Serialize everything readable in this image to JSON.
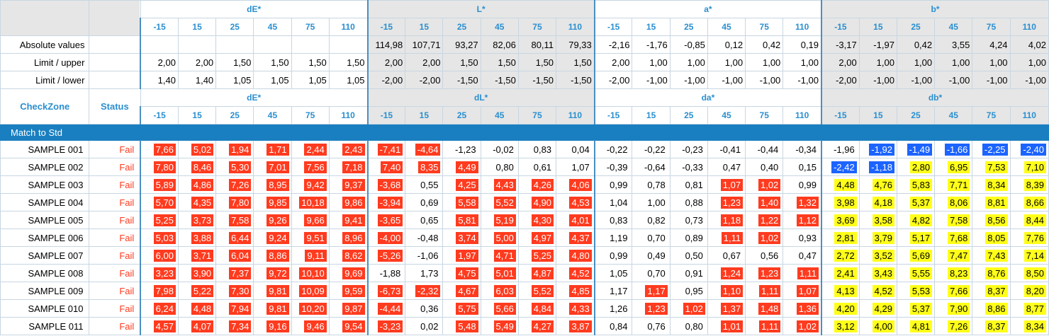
{
  "colors": {
    "accent": "#2a8fd0",
    "band": "#1a7fc0",
    "fail": "#ff3b1f",
    "below": "#1c64ff",
    "warn": "#ffff19"
  },
  "groups_top": [
    "dE*",
    "L*",
    "a*",
    "b*"
  ],
  "groups_diff": [
    "dE*",
    "dL*",
    "da*",
    "db*"
  ],
  "angles": [
    "-15",
    "15",
    "25",
    "45",
    "75",
    "110"
  ],
  "labels": {
    "absolute": "Absolute values",
    "upper": "Limit / upper",
    "lower": "Limit / lower",
    "checkzone": "CheckZone",
    "status": "Status",
    "band": "Match to Std"
  },
  "absolute": [
    "",
    "",
    "",
    "",
    "",
    "",
    "114,98",
    "107,71",
    "93,27",
    "82,06",
    "80,11",
    "79,33",
    "-2,16",
    "-1,76",
    "-0,85",
    "0,12",
    "0,42",
    "0,19",
    "-3,17",
    "-1,97",
    "0,42",
    "3,55",
    "4,24",
    "4,02"
  ],
  "upper": [
    "2,00",
    "2,00",
    "1,50",
    "1,50",
    "1,50",
    "1,50",
    "2,00",
    "2,00",
    "1,50",
    "1,50",
    "1,50",
    "1,50",
    "2,00",
    "1,00",
    "1,00",
    "1,00",
    "1,00",
    "1,00",
    "2,00",
    "1,00",
    "1,00",
    "1,00",
    "1,00",
    "1,00"
  ],
  "lower": [
    "1,40",
    "1,40",
    "1,05",
    "1,05",
    "1,05",
    "1,05",
    "-2,00",
    "-2,00",
    "-1,50",
    "-1,50",
    "-1,50",
    "-1,50",
    "-2,00",
    "-1,00",
    "-1,00",
    "-1,00",
    "-1,00",
    "-1,00",
    "-2,00",
    "-1,00",
    "-1,00",
    "-1,00",
    "-1,00",
    "-1,00"
  ],
  "rows": [
    {
      "name": "SAMPLE 001",
      "status": "Fail",
      "values": [
        "7,66",
        "5,02",
        "1,94",
        "1,71",
        "2,44",
        "2,43",
        "-7,41",
        "-4,64",
        "-1,23",
        "-0,02",
        "0,83",
        "0,04",
        "-0,22",
        "-0,22",
        "-0,23",
        "-0,41",
        "-0,44",
        "-0,34",
        "-1,96",
        "-1,92",
        "-1,49",
        "-1,66",
        "-2,25",
        "-2,40"
      ],
      "flags": [
        "r",
        "r",
        "r",
        "r",
        "r",
        "r",
        "r",
        "r",
        "",
        "",
        "",
        "",
        "",
        "",
        "",
        "",
        "",
        "",
        "",
        "b",
        "b",
        "b",
        "b",
        "b"
      ]
    },
    {
      "name": "SAMPLE 002",
      "status": "Fail",
      "values": [
        "7,80",
        "8,46",
        "5,30",
        "7,01",
        "7,56",
        "7,18",
        "7,40",
        "8,35",
        "4,49",
        "0,80",
        "0,61",
        "1,07",
        "-0,39",
        "-0,64",
        "-0,33",
        "0,47",
        "0,40",
        "0,15",
        "-2,42",
        "-1,18",
        "2,80",
        "6,95",
        "7,53",
        "7,10"
      ],
      "flags": [
        "r",
        "r",
        "r",
        "r",
        "r",
        "r",
        "r",
        "r",
        "r",
        "",
        "",
        "",
        "",
        "",
        "",
        "",
        "",
        "",
        "b",
        "b",
        "y",
        "y",
        "y",
        "y"
      ]
    },
    {
      "name": "SAMPLE 003",
      "status": "Fail",
      "values": [
        "5,89",
        "4,86",
        "7,26",
        "8,95",
        "9,42",
        "9,37",
        "-3,68",
        "0,55",
        "4,25",
        "4,43",
        "4,26",
        "4,06",
        "0,99",
        "0,78",
        "0,81",
        "1,07",
        "1,02",
        "0,99",
        "4,48",
        "4,76",
        "5,83",
        "7,71",
        "8,34",
        "8,39"
      ],
      "flags": [
        "r",
        "r",
        "r",
        "r",
        "r",
        "r",
        "r",
        "",
        "r",
        "r",
        "r",
        "r",
        "",
        "",
        "",
        "r",
        "r",
        "",
        "y",
        "y",
        "y",
        "y",
        "y",
        "y"
      ]
    },
    {
      "name": "SAMPLE 004",
      "status": "Fail",
      "values": [
        "5,70",
        "4,35",
        "7,80",
        "9,85",
        "10,18",
        "9,86",
        "-3,94",
        "0,69",
        "5,58",
        "5,52",
        "4,90",
        "4,53",
        "1,04",
        "1,00",
        "0,88",
        "1,23",
        "1,40",
        "1,32",
        "3,98",
        "4,18",
        "5,37",
        "8,06",
        "8,81",
        "8,66"
      ],
      "flags": [
        "r",
        "r",
        "r",
        "r",
        "r",
        "r",
        "r",
        "",
        "r",
        "r",
        "r",
        "r",
        "",
        "",
        "",
        "r",
        "r",
        "r",
        "y",
        "y",
        "y",
        "y",
        "y",
        "y"
      ]
    },
    {
      "name": "SAMPLE 005",
      "status": "Fail",
      "values": [
        "5,25",
        "3,73",
        "7,58",
        "9,26",
        "9,66",
        "9,41",
        "-3,65",
        "0,65",
        "5,81",
        "5,19",
        "4,30",
        "4,01",
        "0,83",
        "0,82",
        "0,73",
        "1,18",
        "1,22",
        "1,12",
        "3,69",
        "3,58",
        "4,82",
        "7,58",
        "8,56",
        "8,44"
      ],
      "flags": [
        "r",
        "r",
        "r",
        "r",
        "r",
        "r",
        "r",
        "",
        "r",
        "r",
        "r",
        "r",
        "",
        "",
        "",
        "r",
        "r",
        "r",
        "y",
        "y",
        "y",
        "y",
        "y",
        "y"
      ]
    },
    {
      "name": "SAMPLE 006",
      "status": "Fail",
      "values": [
        "5,03",
        "3,88",
        "6,44",
        "9,24",
        "9,51",
        "8,96",
        "-4,00",
        "-0,48",
        "3,74",
        "5,00",
        "4,97",
        "4,37",
        "1,19",
        "0,70",
        "0,89",
        "1,11",
        "1,02",
        "0,93",
        "2,81",
        "3,79",
        "5,17",
        "7,68",
        "8,05",
        "7,76"
      ],
      "flags": [
        "r",
        "r",
        "r",
        "r",
        "r",
        "r",
        "r",
        "",
        "r",
        "r",
        "r",
        "r",
        "",
        "",
        "",
        "r",
        "r",
        "",
        "y",
        "y",
        "y",
        "y",
        "y",
        "y"
      ]
    },
    {
      "name": "SAMPLE 007",
      "status": "Fail",
      "values": [
        "6,00",
        "3,71",
        "6,04",
        "8,86",
        "9,11",
        "8,62",
        "-5,26",
        "-1,06",
        "1,97",
        "4,71",
        "5,25",
        "4,80",
        "0,99",
        "0,49",
        "0,50",
        "0,67",
        "0,56",
        "0,47",
        "2,72",
        "3,52",
        "5,69",
        "7,47",
        "7,43",
        "7,14"
      ],
      "flags": [
        "r",
        "r",
        "r",
        "r",
        "r",
        "r",
        "r",
        "",
        "r",
        "r",
        "r",
        "r",
        "",
        "",
        "",
        "",
        "",
        "",
        "y",
        "y",
        "y",
        "y",
        "y",
        "y"
      ]
    },
    {
      "name": "SAMPLE 008",
      "status": "Fail",
      "values": [
        "3,23",
        "3,90",
        "7,37",
        "9,72",
        "10,10",
        "9,69",
        "-1,88",
        "1,73",
        "4,75",
        "5,01",
        "4,87",
        "4,52",
        "1,05",
        "0,70",
        "0,91",
        "1,24",
        "1,23",
        "1,11",
        "2,41",
        "3,43",
        "5,55",
        "8,23",
        "8,76",
        "8,50"
      ],
      "flags": [
        "r",
        "r",
        "r",
        "r",
        "r",
        "r",
        "",
        "",
        "r",
        "r",
        "r",
        "r",
        "",
        "",
        "",
        "r",
        "r",
        "r",
        "y",
        "y",
        "y",
        "y",
        "y",
        "y"
      ]
    },
    {
      "name": "SAMPLE 009",
      "status": "Fail",
      "values": [
        "7,98",
        "5,22",
        "7,30",
        "9,81",
        "10,09",
        "9,59",
        "-6,73",
        "-2,32",
        "4,67",
        "6,03",
        "5,52",
        "4,85",
        "1,17",
        "1,17",
        "0,95",
        "1,10",
        "1,11",
        "1,07",
        "4,13",
        "4,52",
        "5,53",
        "7,66",
        "8,37",
        "8,20"
      ],
      "flags": [
        "r",
        "r",
        "r",
        "r",
        "r",
        "r",
        "r",
        "r",
        "r",
        "r",
        "r",
        "r",
        "",
        "r",
        "",
        "r",
        "r",
        "r",
        "y",
        "y",
        "y",
        "y",
        "y",
        "y"
      ]
    },
    {
      "name": "SAMPLE 010",
      "status": "Fail",
      "values": [
        "6,24",
        "4,48",
        "7,94",
        "9,81",
        "10,20",
        "9,87",
        "-4,44",
        "0,36",
        "5,75",
        "5,66",
        "4,84",
        "4,33",
        "1,26",
        "1,23",
        "1,02",
        "1,37",
        "1,48",
        "1,36",
        "4,20",
        "4,29",
        "5,37",
        "7,90",
        "8,86",
        "8,77"
      ],
      "flags": [
        "r",
        "r",
        "r",
        "r",
        "r",
        "r",
        "r",
        "",
        "r",
        "r",
        "r",
        "r",
        "",
        "r",
        "r",
        "r",
        "r",
        "r",
        "y",
        "y",
        "y",
        "y",
        "y",
        "y"
      ]
    },
    {
      "name": "SAMPLE 011",
      "status": "Fail",
      "values": [
        "4,57",
        "4,07",
        "7,34",
        "9,16",
        "9,46",
        "9,54",
        "-3,23",
        "0,02",
        "5,48",
        "5,49",
        "4,27",
        "3,87",
        "0,84",
        "0,76",
        "0,80",
        "1,01",
        "1,11",
        "1,02",
        "3,12",
        "4,00",
        "4,81",
        "7,26",
        "8,37",
        "8,34"
      ],
      "flags": [
        "r",
        "r",
        "r",
        "r",
        "r",
        "r",
        "r",
        "",
        "r",
        "r",
        "r",
        "r",
        "",
        "",
        "",
        "r",
        "r",
        "r",
        "y",
        "y",
        "y",
        "y",
        "y",
        "y"
      ]
    }
  ]
}
